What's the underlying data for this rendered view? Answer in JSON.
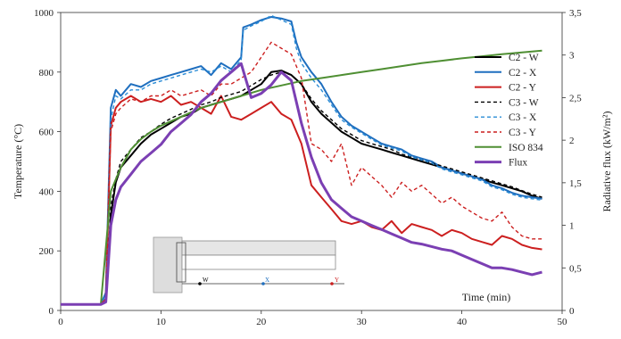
{
  "chart_data": {
    "type": "line",
    "title": "",
    "xlabel": "Time (min)",
    "ylabel": "Temperature (°C)",
    "y2label": "Radiative flux (kW/m²)",
    "xlim": [
      0,
      50
    ],
    "ylim": [
      0,
      1000
    ],
    "y2lim": [
      0,
      3.5
    ],
    "xticks": [
      "0",
      "10",
      "20",
      "30",
      "40",
      "50"
    ],
    "yticks": [
      "0",
      "200",
      "400",
      "600",
      "800",
      "1000"
    ],
    "y2ticks": [
      "0",
      "0,5",
      "1",
      "1,5",
      "2",
      "2,5",
      "3",
      "3,5"
    ],
    "grid": false,
    "legend_position": "right",
    "inset_labels": [
      "W",
      "X",
      "Y"
    ],
    "series": [
      {
        "name": "C2 - W",
        "color": "#000000",
        "dash": "solid",
        "width": 2,
        "axis": "left",
        "x": [
          0,
          4,
          4.5,
          5,
          5.5,
          6,
          7,
          8,
          9,
          10,
          11,
          12,
          13,
          14,
          15,
          16,
          17,
          18,
          19,
          20,
          21,
          22,
          23,
          24,
          25,
          26,
          27,
          28,
          29,
          30,
          31,
          32,
          33,
          34,
          35,
          36,
          37,
          38,
          39,
          40,
          41,
          42,
          43,
          44,
          45,
          46,
          47,
          48
        ],
        "y": [
          20,
          20,
          30,
          320,
          430,
          480,
          520,
          560,
          590,
          610,
          630,
          650,
          660,
          680,
          690,
          700,
          710,
          720,
          740,
          760,
          800,
          805,
          790,
          760,
          700,
          660,
          630,
          600,
          580,
          560,
          550,
          540,
          530,
          520,
          510,
          500,
          490,
          480,
          470,
          460,
          450,
          440,
          430,
          420,
          410,
          400,
          385,
          375
        ]
      },
      {
        "name": "C2 - X",
        "color": "#1f6fbf",
        "dash": "solid",
        "width": 2,
        "axis": "left",
        "x": [
          0,
          4,
          4.5,
          5,
          5.5,
          6,
          7,
          8,
          9,
          10,
          11,
          12,
          13,
          14,
          15,
          16,
          17,
          18,
          18.2,
          19,
          20,
          21,
          22,
          23,
          23.5,
          24,
          25,
          26,
          27,
          28,
          29,
          30,
          31,
          32,
          33,
          34,
          35,
          36,
          37,
          38,
          39,
          40,
          41,
          42,
          43,
          44,
          45,
          46,
          47,
          48
        ],
        "y": [
          20,
          20,
          60,
          680,
          740,
          720,
          760,
          750,
          770,
          780,
          790,
          800,
          810,
          820,
          790,
          830,
          810,
          850,
          950,
          960,
          975,
          985,
          980,
          970,
          900,
          850,
          800,
          760,
          700,
          650,
          620,
          600,
          580,
          560,
          550,
          540,
          520,
          510,
          500,
          480,
          470,
          460,
          450,
          440,
          420,
          410,
          395,
          385,
          380,
          375
        ]
      },
      {
        "name": "C2 - Y",
        "color": "#cc1f1f",
        "dash": "solid",
        "width": 2,
        "axis": "left",
        "x": [
          0,
          4,
          4.5,
          5,
          5.5,
          6,
          7,
          8,
          9,
          10,
          11,
          12,
          13,
          14,
          15,
          16,
          17,
          18,
          19,
          20,
          21,
          22,
          23,
          24,
          25,
          26,
          27,
          28,
          29,
          30,
          31,
          32,
          33,
          34,
          35,
          36,
          37,
          38,
          39,
          40,
          41,
          42,
          43,
          44,
          45,
          46,
          47,
          48
        ],
        "y": [
          20,
          20,
          40,
          620,
          680,
          700,
          720,
          700,
          710,
          700,
          720,
          690,
          700,
          680,
          660,
          720,
          650,
          640,
          660,
          680,
          700,
          660,
          640,
          560,
          420,
          380,
          340,
          300,
          290,
          300,
          280,
          270,
          300,
          260,
          290,
          280,
          270,
          250,
          270,
          260,
          240,
          230,
          220,
          250,
          240,
          220,
          210,
          205
        ]
      },
      {
        "name": "C3 - W",
        "color": "#000000",
        "dash": "dashed",
        "width": 1.4,
        "axis": "left",
        "x": [
          0,
          4,
          4.5,
          5,
          5.5,
          6,
          7,
          8,
          9,
          10,
          11,
          12,
          13,
          14,
          15,
          16,
          17,
          18,
          19,
          20,
          21,
          22,
          23,
          24,
          25,
          26,
          27,
          28,
          29,
          30,
          31,
          32,
          33,
          34,
          35,
          36,
          37,
          38,
          39,
          40,
          41,
          42,
          43,
          44,
          45,
          46,
          47,
          48
        ],
        "y": [
          20,
          20,
          30,
          350,
          440,
          500,
          540,
          580,
          600,
          625,
          645,
          660,
          675,
          690,
          700,
          715,
          725,
          735,
          755,
          775,
          790,
          800,
          790,
          760,
          710,
          670,
          640,
          610,
          590,
          570,
          560,
          550,
          540,
          525,
          515,
          505,
          495,
          485,
          475,
          465,
          455,
          445,
          435,
          425,
          415,
          402,
          390,
          380
        ]
      },
      {
        "name": "C3 - X",
        "color": "#2a8cd6",
        "dash": "dashed",
        "width": 1.4,
        "axis": "left",
        "x": [
          0,
          4,
          4.5,
          5,
          5.5,
          6,
          7,
          8,
          9,
          10,
          11,
          12,
          13,
          14,
          15,
          16,
          17,
          18,
          18.2,
          19,
          20,
          21,
          22,
          23,
          23.5,
          24,
          25,
          26,
          27,
          28,
          29,
          30,
          31,
          32,
          33,
          34,
          35,
          36,
          37,
          38,
          39,
          40,
          41,
          42,
          43,
          44,
          45,
          46,
          47,
          48
        ],
        "y": [
          20,
          20,
          50,
          640,
          720,
          710,
          740,
          740,
          760,
          770,
          780,
          790,
          800,
          810,
          800,
          820,
          800,
          840,
          940,
          955,
          970,
          990,
          975,
          960,
          880,
          830,
          780,
          740,
          690,
          640,
          615,
          595,
          575,
          555,
          545,
          535,
          515,
          505,
          495,
          475,
          465,
          455,
          445,
          435,
          415,
          405,
          390,
          380,
          375,
          370
        ]
      },
      {
        "name": "C3 - Y",
        "color": "#cc1f1f",
        "dash": "dashed",
        "width": 1.4,
        "axis": "left",
        "x": [
          0,
          4,
          4.5,
          5,
          5.5,
          6,
          7,
          8,
          9,
          10,
          11,
          12,
          13,
          14,
          15,
          16,
          17,
          18,
          19,
          20,
          21,
          22,
          23,
          24,
          25,
          26,
          27,
          28,
          29,
          30,
          31,
          32,
          33,
          34,
          35,
          36,
          37,
          38,
          39,
          40,
          41,
          42,
          43,
          44,
          45,
          46,
          47,
          48
        ],
        "y": [
          20,
          20,
          40,
          600,
          660,
          680,
          710,
          700,
          720,
          720,
          740,
          720,
          730,
          740,
          720,
          760,
          760,
          780,
          800,
          850,
          900,
          880,
          860,
          780,
          560,
          540,
          500,
          560,
          420,
          480,
          450,
          420,
          380,
          430,
          400,
          420,
          390,
          360,
          380,
          350,
          330,
          310,
          300,
          330,
          280,
          250,
          240,
          240
        ]
      },
      {
        "name": "ISO 834",
        "color": "#4f8f33",
        "dash": "solid",
        "width": 2,
        "axis": "left",
        "x": [
          4,
          5,
          6,
          7,
          8,
          9,
          10,
          12,
          14,
          16,
          18,
          20,
          22,
          24,
          26,
          28,
          30,
          32,
          34,
          36,
          38,
          40,
          42,
          44,
          46,
          48
        ],
        "y": [
          20,
          400,
          480,
          540,
          575,
          600,
          620,
          650,
          680,
          700,
          720,
          740,
          755,
          770,
          780,
          790,
          800,
          810,
          820,
          830,
          838,
          846,
          853,
          860,
          866,
          872
        ]
      },
      {
        "name": "Flux",
        "color": "#7b3fb3",
        "dash": "solid",
        "width": 3,
        "axis": "right",
        "x": [
          0,
          4,
          4.5,
          5,
          5.5,
          6,
          7,
          8,
          9,
          10,
          11,
          12,
          13,
          14,
          15,
          16,
          17,
          18,
          19,
          20,
          21,
          22,
          23,
          24,
          25,
          26,
          27,
          28,
          29,
          30,
          31,
          32,
          33,
          34,
          35,
          36,
          37,
          38,
          39,
          40,
          41,
          42,
          43,
          44,
          45,
          46,
          47,
          48
        ],
        "y": [
          0.07,
          0.07,
          0.1,
          1.0,
          1.3,
          1.45,
          1.6,
          1.75,
          1.85,
          1.95,
          2.1,
          2.2,
          2.3,
          2.45,
          2.55,
          2.7,
          2.8,
          2.9,
          2.5,
          2.55,
          2.65,
          2.8,
          2.7,
          2.2,
          1.8,
          1.5,
          1.3,
          1.2,
          1.1,
          1.05,
          1.0,
          0.95,
          0.9,
          0.85,
          0.8,
          0.78,
          0.75,
          0.72,
          0.7,
          0.65,
          0.6,
          0.55,
          0.5,
          0.5,
          0.48,
          0.45,
          0.42,
          0.45
        ]
      }
    ]
  }
}
